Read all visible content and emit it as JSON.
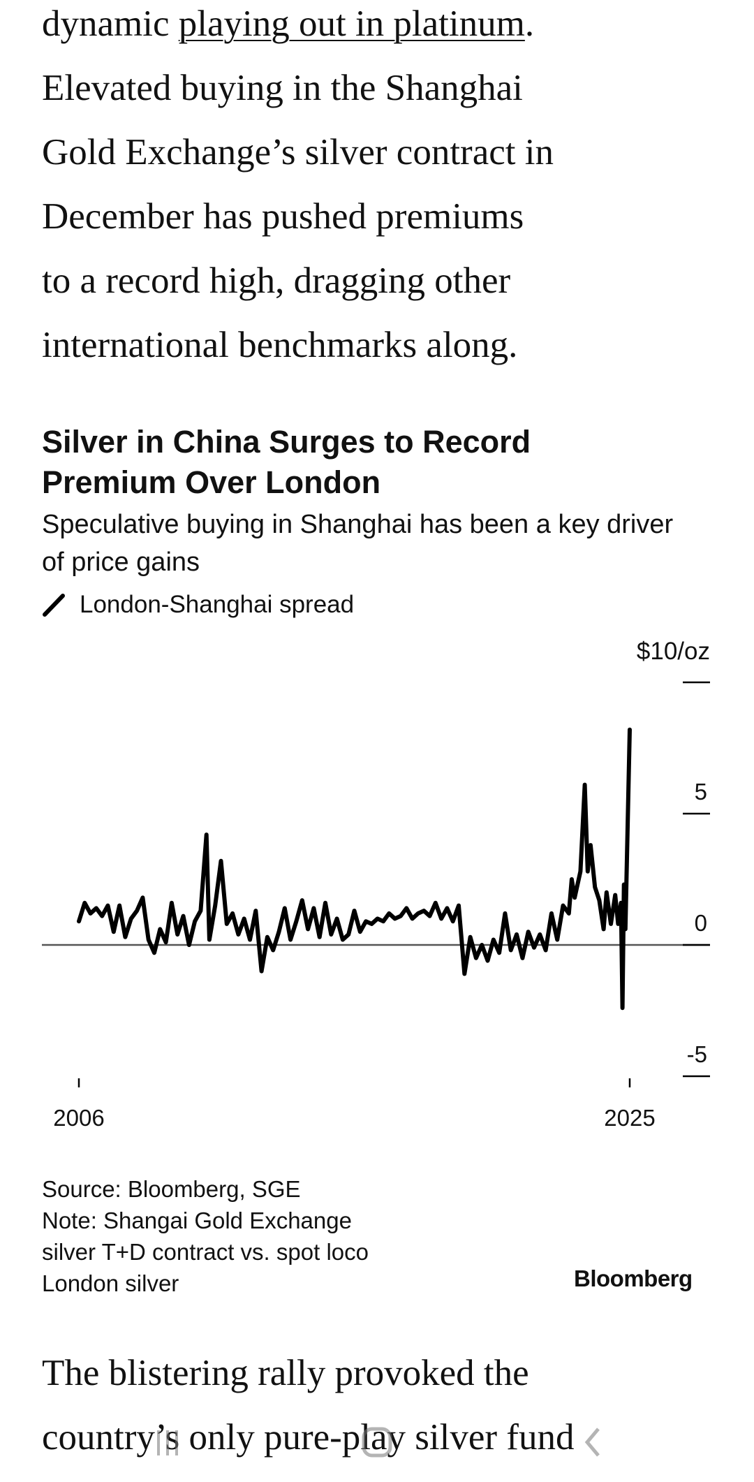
{
  "article": {
    "para1_prefix": "dynamic ",
    "para1_link": "playing out in platinum",
    "para1_lines": [
      ".",
      "Elevated buying in the Shanghai",
      "Gold Exchange’s silver contract in",
      "December has pushed premiums",
      "to a record high, dragging other",
      "international benchmarks along."
    ],
    "para2_lines": [
      "The blistering rally provoked the",
      "country’s only pure-play silver fund"
    ]
  },
  "chart_data": {
    "type": "line",
    "title": "Silver in China Surges to Record Premium Over London",
    "subtitle": "Speculative buying in Shanghai has been a key driver of price gains",
    "legend": "London-Shanghai spread",
    "unit_label": "$10/oz",
    "ylim": [
      -5,
      10
    ],
    "yticks": [
      10,
      5,
      0,
      -5
    ],
    "ytick_labels": [
      "",
      "5",
      "0",
      "-5"
    ],
    "xticks": [
      2006,
      2025
    ],
    "xtick_labels": [
      "2006",
      "2025"
    ],
    "grid": false,
    "zero_line": true,
    "line_color": "#000000",
    "series": [
      {
        "name": "London-Shanghai spread",
        "x": [
          2006.0,
          2006.2,
          2006.4,
          2006.6,
          2006.8,
          2007.0,
          2007.2,
          2007.4,
          2007.6,
          2007.8,
          2008.0,
          2008.2,
          2008.4,
          2008.6,
          2008.8,
          2009.0,
          2009.2,
          2009.4,
          2009.6,
          2009.8,
          2010.0,
          2010.2,
          2010.4,
          2010.5,
          2010.7,
          2010.9,
          2011.1,
          2011.3,
          2011.5,
          2011.7,
          2011.9,
          2012.1,
          2012.3,
          2012.5,
          2012.7,
          2012.9,
          2013.1,
          2013.3,
          2013.5,
          2013.7,
          2013.9,
          2014.1,
          2014.3,
          2014.5,
          2014.7,
          2014.9,
          2015.1,
          2015.3,
          2015.5,
          2015.7,
          2015.9,
          2016.1,
          2016.3,
          2016.5,
          2016.7,
          2016.9,
          2017.1,
          2017.3,
          2017.5,
          2017.7,
          2017.9,
          2018.1,
          2018.3,
          2018.5,
          2018.7,
          2018.9,
          2019.1,
          2019.3,
          2019.5,
          2019.7,
          2019.9,
          2020.1,
          2020.3,
          2020.5,
          2020.7,
          2020.9,
          2021.1,
          2021.3,
          2021.5,
          2021.7,
          2021.9,
          2022.1,
          2022.3,
          2022.5,
          2022.7,
          2022.9,
          2023.0,
          2023.1,
          2023.3,
          2023.45,
          2023.55,
          2023.65,
          2023.8,
          2023.95,
          2024.1,
          2024.2,
          2024.35,
          2024.5,
          2024.6,
          2024.7,
          2024.75,
          2024.8,
          2024.85,
          2025.0
        ],
        "y": [
          0.9,
          1.6,
          1.2,
          1.4,
          1.1,
          1.5,
          0.5,
          1.5,
          0.3,
          1.0,
          1.3,
          1.8,
          0.2,
          -0.3,
          0.6,
          0.1,
          1.6,
          0.4,
          1.1,
          0.0,
          0.9,
          1.3,
          4.2,
          0.2,
          1.5,
          3.2,
          0.8,
          1.2,
          0.4,
          1.0,
          0.2,
          1.3,
          -1.0,
          0.3,
          -0.2,
          0.5,
          1.4,
          0.2,
          0.9,
          1.7,
          0.6,
          1.4,
          0.3,
          1.6,
          0.4,
          1.0,
          0.2,
          0.4,
          1.3,
          0.5,
          0.9,
          0.8,
          1.0,
          0.9,
          1.2,
          1.0,
          1.1,
          1.4,
          1.0,
          1.2,
          1.3,
          1.1,
          1.6,
          1.0,
          1.4,
          0.9,
          1.5,
          -1.1,
          0.3,
          -0.5,
          0.0,
          -0.6,
          0.2,
          -0.3,
          1.2,
          -0.2,
          0.4,
          -0.5,
          0.5,
          -0.1,
          0.4,
          -0.2,
          1.2,
          0.2,
          1.5,
          1.2,
          2.5,
          1.8,
          2.8,
          6.1,
          2.8,
          3.8,
          2.2,
          1.7,
          0.6,
          2.0,
          0.8,
          1.9,
          0.8,
          1.6,
          -2.4,
          2.3,
          0.6,
          8.2
        ]
      }
    ],
    "source": "Source: Bloomberg, SGE",
    "note_lines": [
      "Note: Shangai Gold Exchange",
      "silver T+D contract vs. spot loco",
      "London silver"
    ],
    "logo": "Bloomberg"
  },
  "icons": {
    "legend": "line-slash-icon",
    "nav": [
      "recent-apps-icon",
      "home-icon",
      "back-icon"
    ]
  }
}
